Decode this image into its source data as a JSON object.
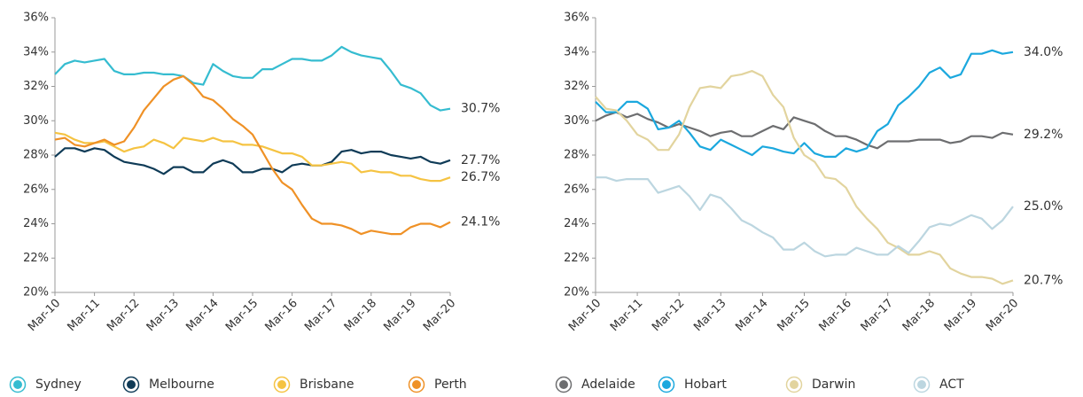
{
  "chart_data": [
    {
      "type": "line",
      "categories": [
        "Mar-10",
        null,
        null,
        null,
        "Mar-11",
        null,
        null,
        null,
        "Mar-12",
        null,
        null,
        null,
        "Mar-13",
        null,
        null,
        null,
        "Mar-14",
        null,
        null,
        null,
        "Mar-15",
        null,
        null,
        null,
        "Mar-16",
        null,
        null,
        null,
        "Mar-17",
        null,
        null,
        null,
        "Mar-18",
        null,
        null,
        null,
        "Mar-19",
        null,
        null,
        null,
        "Mar-20"
      ],
      "ylim": [
        20,
        36
      ],
      "yticks": [
        {
          "value": 20,
          "label": "20%"
        },
        {
          "value": 22,
          "label": "22%"
        },
        {
          "value": 24,
          "label": "24%"
        },
        {
          "value": 26,
          "label": "26%"
        },
        {
          "value": 28,
          "label": "28%"
        },
        {
          "value": 30,
          "label": "30%"
        },
        {
          "value": 32,
          "label": "32%"
        },
        {
          "value": 34,
          "label": "34%"
        },
        {
          "value": 36,
          "label": "36%"
        }
      ],
      "grid": false,
      "legend": "bottom",
      "series": [
        {
          "name": "Sydney",
          "color": "#35bcd0",
          "values": [
            32.7,
            33.3,
            33.5,
            33.4,
            33.5,
            33.6,
            32.9,
            32.7,
            32.7,
            32.8,
            32.8,
            32.7,
            32.7,
            32.6,
            32.2,
            32.1,
            33.3,
            32.9,
            32.6,
            32.5,
            32.5,
            33.0,
            33.0,
            33.3,
            33.6,
            33.6,
            33.5,
            33.5,
            33.8,
            34.3,
            34.0,
            33.8,
            33.7,
            33.6,
            32.9,
            32.1,
            31.9,
            31.6,
            30.9,
            30.6,
            30.7
          ],
          "value_labels": [
            null,
            null,
            null,
            null,
            null,
            null,
            null,
            null,
            null,
            null,
            null,
            null,
            null,
            null,
            null,
            null,
            null,
            null,
            null,
            null,
            null,
            null,
            null,
            null,
            null,
            null,
            null,
            null,
            null,
            null,
            null,
            null,
            null,
            null,
            null,
            null,
            null,
            null,
            null,
            null,
            "30.7%"
          ]
        },
        {
          "name": "Melbourne",
          "color": "#0f3b57",
          "values": [
            27.9,
            28.4,
            28.4,
            28.2,
            28.4,
            28.3,
            27.9,
            27.6,
            27.5,
            27.4,
            27.2,
            26.9,
            27.3,
            27.3,
            27.0,
            27.0,
            27.5,
            27.7,
            27.5,
            27.0,
            27.0,
            27.2,
            27.2,
            27.0,
            27.4,
            27.5,
            27.4,
            27.4,
            27.6,
            28.2,
            28.3,
            28.1,
            28.2,
            28.2,
            28.0,
            27.9,
            27.8,
            27.9,
            27.6,
            27.5,
            27.7
          ],
          "value_labels": [
            null,
            null,
            null,
            null,
            null,
            null,
            null,
            null,
            null,
            null,
            null,
            null,
            null,
            null,
            null,
            null,
            null,
            null,
            null,
            null,
            null,
            null,
            null,
            null,
            null,
            null,
            null,
            null,
            null,
            null,
            null,
            null,
            null,
            null,
            null,
            null,
            null,
            null,
            null,
            null,
            "27.7%"
          ]
        },
        {
          "name": "Brisbane",
          "color": "#f5c342",
          "values": [
            29.3,
            29.2,
            28.9,
            28.7,
            28.7,
            28.8,
            28.5,
            28.2,
            28.4,
            28.5,
            28.9,
            28.7,
            28.4,
            29.0,
            28.9,
            28.8,
            29.0,
            28.8,
            28.8,
            28.6,
            28.6,
            28.5,
            28.3,
            28.1,
            28.1,
            27.9,
            27.4,
            27.4,
            27.5,
            27.6,
            27.5,
            27.0,
            27.1,
            27.0,
            27.0,
            26.8,
            26.8,
            26.6,
            26.5,
            26.5,
            26.7
          ],
          "value_labels": [
            null,
            null,
            null,
            null,
            null,
            null,
            null,
            null,
            null,
            null,
            null,
            null,
            null,
            null,
            null,
            null,
            null,
            null,
            null,
            null,
            null,
            null,
            null,
            null,
            null,
            null,
            null,
            null,
            null,
            null,
            null,
            null,
            null,
            null,
            null,
            null,
            null,
            null,
            null,
            null,
            "26.7%"
          ]
        },
        {
          "name": "Perth",
          "color": "#ef9126",
          "values": [
            28.9,
            29.0,
            28.6,
            28.5,
            28.7,
            28.9,
            28.6,
            28.8,
            29.6,
            30.6,
            31.3,
            32.0,
            32.4,
            32.6,
            32.1,
            31.4,
            31.2,
            30.7,
            30.1,
            29.7,
            29.2,
            28.2,
            27.2,
            26.4,
            26.0,
            25.1,
            24.3,
            24.0,
            24.0,
            23.9,
            23.7,
            23.4,
            23.6,
            23.5,
            23.4,
            23.4,
            23.8,
            24.0,
            24.0,
            23.8,
            24.1
          ],
          "value_labels": [
            null,
            null,
            null,
            null,
            null,
            null,
            null,
            null,
            null,
            null,
            null,
            null,
            null,
            null,
            null,
            null,
            null,
            null,
            null,
            null,
            null,
            null,
            null,
            null,
            null,
            null,
            null,
            null,
            null,
            null,
            null,
            null,
            null,
            null,
            null,
            null,
            null,
            null,
            null,
            null,
            "24.1%"
          ]
        }
      ]
    },
    {
      "type": "line",
      "categories": [
        "Mar-10",
        null,
        null,
        null,
        "Mar-11",
        null,
        null,
        null,
        "Mar-12",
        null,
        null,
        null,
        "Mar-13",
        null,
        null,
        null,
        "Mar-14",
        null,
        null,
        null,
        "Mar-15",
        null,
        null,
        null,
        "Mar-16",
        null,
        null,
        null,
        "Mar-17",
        null,
        null,
        null,
        "Mar-18",
        null,
        null,
        null,
        "Mar-19",
        null,
        null,
        null,
        "Mar-20"
      ],
      "ylim": [
        20,
        36
      ],
      "yticks": [
        {
          "value": 20,
          "label": "20%"
        },
        {
          "value": 22,
          "label": "22%"
        },
        {
          "value": 24,
          "label": "24%"
        },
        {
          "value": 26,
          "label": "26%"
        },
        {
          "value": 28,
          "label": "28%"
        },
        {
          "value": 30,
          "label": "30%"
        },
        {
          "value": 32,
          "label": "32%"
        },
        {
          "value": 34,
          "label": "34%"
        },
        {
          "value": 36,
          "label": "36%"
        }
      ],
      "grid": false,
      "legend": "bottom",
      "series": [
        {
          "name": "Adelaide",
          "color": "#6d6e70",
          "values": [
            30.0,
            30.3,
            30.5,
            30.2,
            30.4,
            30.1,
            29.9,
            29.6,
            29.8,
            29.6,
            29.4,
            29.1,
            29.3,
            29.4,
            29.1,
            29.1,
            29.4,
            29.7,
            29.5,
            30.2,
            30.0,
            29.8,
            29.4,
            29.1,
            29.1,
            28.9,
            28.6,
            28.4,
            28.8,
            28.8,
            28.8,
            28.9,
            28.9,
            28.9,
            28.7,
            28.8,
            29.1,
            29.1,
            29.0,
            29.3,
            29.2
          ],
          "value_labels": [
            null,
            null,
            null,
            null,
            null,
            null,
            null,
            null,
            null,
            null,
            null,
            null,
            null,
            null,
            null,
            null,
            null,
            null,
            null,
            null,
            null,
            null,
            null,
            null,
            null,
            null,
            null,
            null,
            null,
            null,
            null,
            null,
            null,
            null,
            null,
            null,
            null,
            null,
            null,
            null,
            "29.2%"
          ]
        },
        {
          "name": "Hobart",
          "color": "#1ba8de",
          "values": [
            31.1,
            30.5,
            30.5,
            31.1,
            31.1,
            30.7,
            29.5,
            29.6,
            30.0,
            29.3,
            28.5,
            28.3,
            28.9,
            28.6,
            28.3,
            28.0,
            28.5,
            28.4,
            28.2,
            28.1,
            28.7,
            28.1,
            27.9,
            27.9,
            28.4,
            28.2,
            28.4,
            29.4,
            29.8,
            30.9,
            31.4,
            32.0,
            32.8,
            33.1,
            32.5,
            32.7,
            33.9,
            33.9,
            34.1,
            33.9,
            34.0
          ],
          "value_labels": [
            null,
            null,
            null,
            null,
            null,
            null,
            null,
            null,
            null,
            null,
            null,
            null,
            null,
            null,
            null,
            null,
            null,
            null,
            null,
            null,
            null,
            null,
            null,
            null,
            null,
            null,
            null,
            null,
            null,
            null,
            null,
            null,
            null,
            null,
            null,
            null,
            null,
            null,
            null,
            null,
            "34.0%"
          ]
        },
        {
          "name": "Darwin",
          "color": "#e2d49e",
          "values": [
            31.4,
            30.7,
            30.6,
            30.0,
            29.2,
            28.9,
            28.3,
            28.3,
            29.2,
            30.8,
            31.9,
            32.0,
            31.9,
            32.6,
            32.7,
            32.9,
            32.6,
            31.5,
            30.8,
            29.0,
            28.0,
            27.6,
            26.7,
            26.6,
            26.1,
            25.0,
            24.3,
            23.7,
            22.9,
            22.6,
            22.2,
            22.2,
            22.4,
            22.2,
            21.4,
            21.1,
            20.9,
            20.9,
            20.8,
            20.5,
            20.7
          ],
          "value_labels": [
            null,
            null,
            null,
            null,
            null,
            null,
            null,
            null,
            null,
            null,
            null,
            null,
            null,
            null,
            null,
            null,
            null,
            null,
            null,
            null,
            null,
            null,
            null,
            null,
            null,
            null,
            null,
            null,
            null,
            null,
            null,
            null,
            null,
            null,
            null,
            null,
            null,
            null,
            null,
            null,
            "20.7%"
          ]
        },
        {
          "name": "ACT",
          "color": "#bcd6e0",
          "values": [
            26.7,
            26.7,
            26.5,
            26.6,
            26.6,
            26.6,
            25.8,
            26.0,
            26.2,
            25.6,
            24.8,
            25.7,
            25.5,
            24.9,
            24.2,
            23.9,
            23.5,
            23.2,
            22.5,
            22.5,
            22.9,
            22.4,
            22.1,
            22.2,
            22.2,
            22.6,
            22.4,
            22.2,
            22.2,
            22.7,
            22.3,
            23.0,
            23.8,
            24.0,
            23.9,
            24.2,
            24.5,
            24.3,
            23.7,
            24.2,
            25.0
          ],
          "value_labels": [
            null,
            null,
            null,
            null,
            null,
            null,
            null,
            null,
            null,
            null,
            null,
            null,
            null,
            null,
            null,
            null,
            null,
            null,
            null,
            null,
            null,
            null,
            null,
            null,
            null,
            null,
            null,
            null,
            null,
            null,
            null,
            null,
            null,
            null,
            null,
            null,
            null,
            null,
            null,
            null,
            "25.0%"
          ]
        }
      ]
    }
  ]
}
